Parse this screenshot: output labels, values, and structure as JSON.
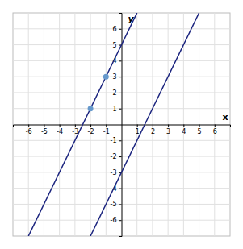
{
  "chart_data": {
    "type": "line",
    "xlabel": "x",
    "ylabel": "y",
    "xlim": [
      -7,
      7
    ],
    "ylim": [
      -7,
      7
    ],
    "xticks": [
      -6,
      -5,
      -4,
      -3,
      -2,
      -1,
      1,
      2,
      3,
      4,
      5,
      6
    ],
    "yticks": [
      -6,
      -5,
      -4,
      -3,
      -2,
      -1,
      1,
      2,
      3,
      4,
      5,
      6
    ],
    "grid": true,
    "series": [
      {
        "type": "line",
        "color": "#1a237e",
        "x": [
          -2,
          5
        ],
        "values": [
          -7,
          7
        ]
      },
      {
        "type": "line",
        "color": "#1a237e",
        "x": [
          -6,
          1
        ],
        "values": [
          -7,
          7
        ]
      },
      {
        "type": "scatter",
        "color": "#6699cc",
        "x": [
          -2,
          -1
        ],
        "values": [
          1,
          3
        ]
      }
    ]
  }
}
